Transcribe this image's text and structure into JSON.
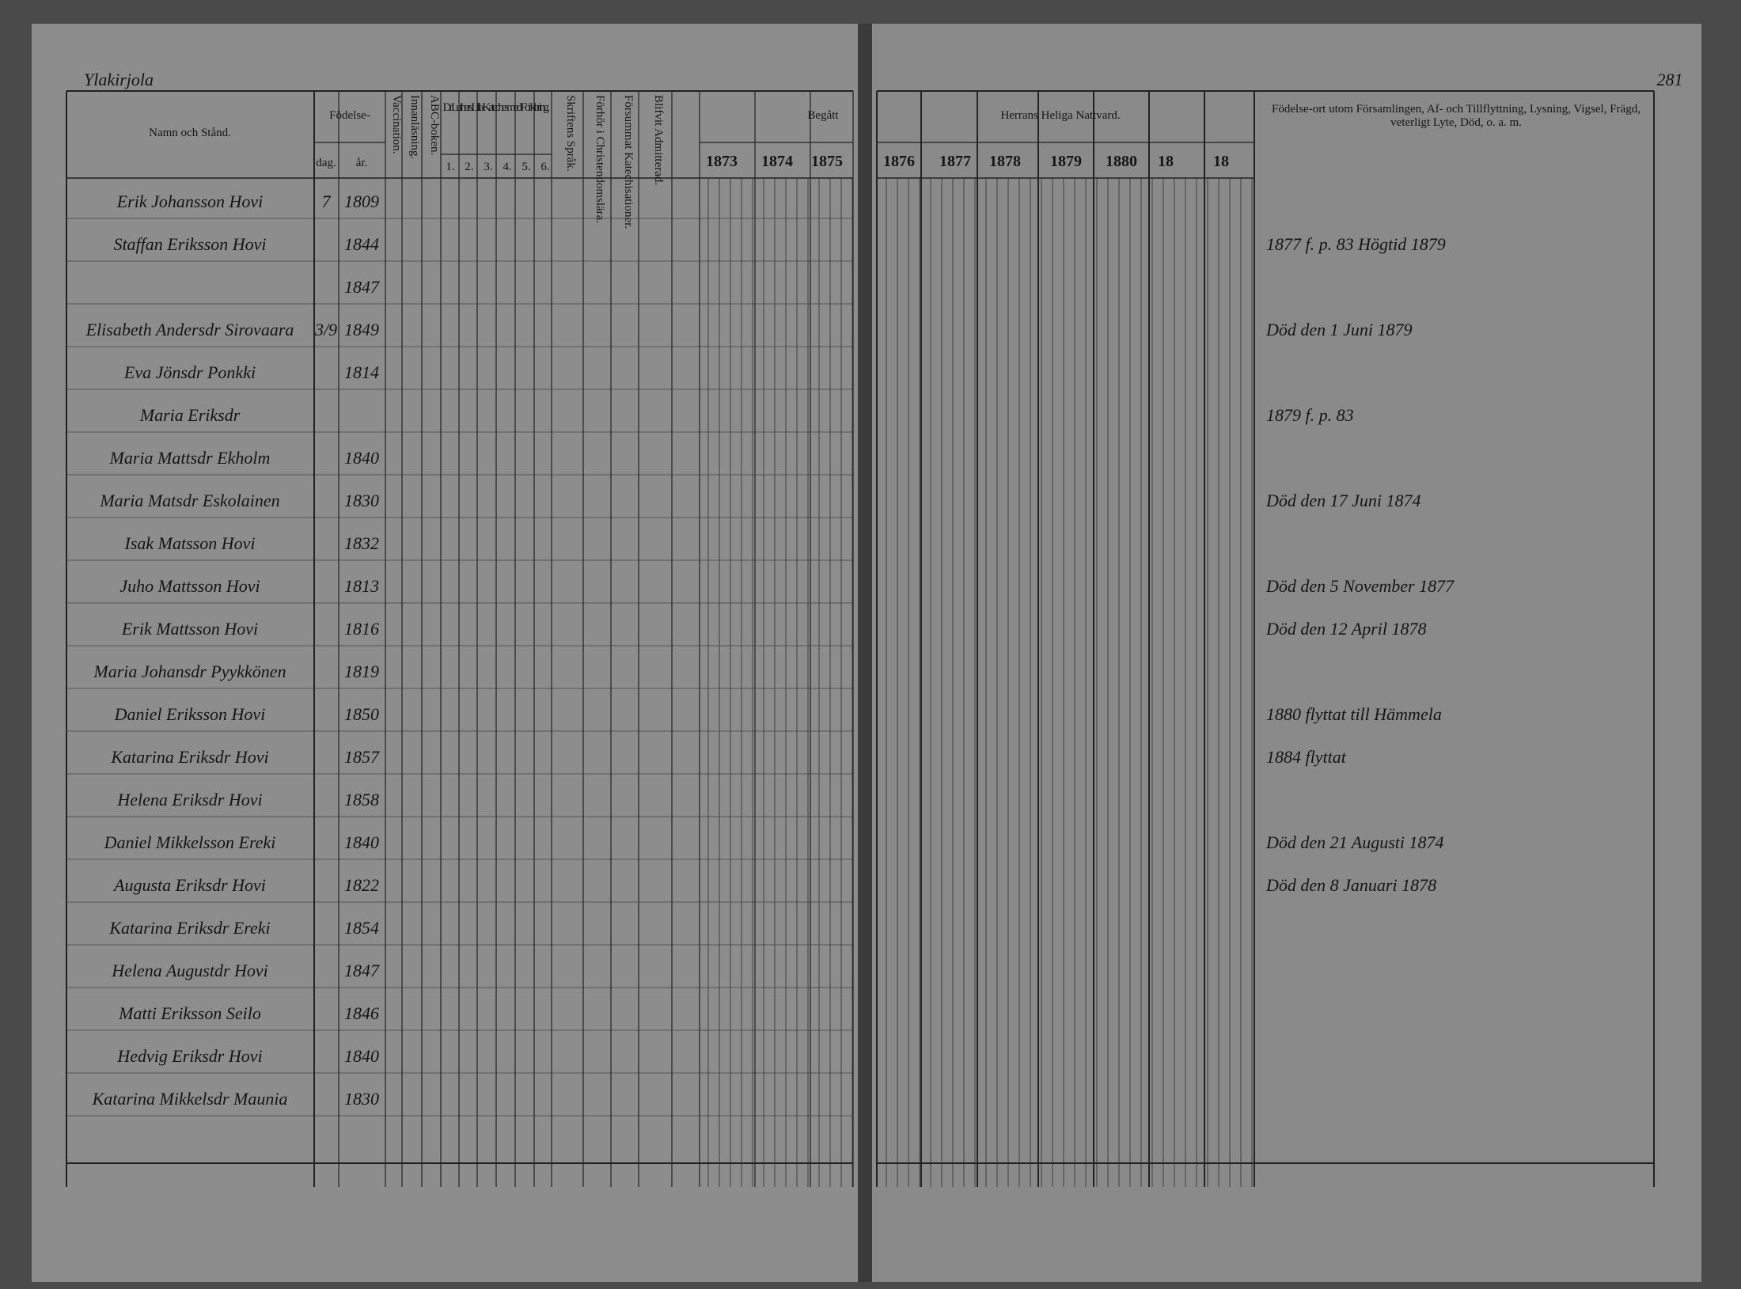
{
  "left_page": {
    "parish": "Ylakirjola",
    "headers": {
      "name": "Namn och Stånd.",
      "birth": "Födelse-",
      "day": "dag.",
      "year": "år.",
      "vaccination": "Vaccination.",
      "reading": "Innanläsning.",
      "abc": "ABC-boken.",
      "catechism": "Dr Luthers Lilla Katechesmed Förklaring.",
      "catechism_parts": [
        "1.",
        "2.",
        "3.",
        "4.",
        "5.",
        "6."
      ],
      "scripture": "Skriftens Språk.",
      "christianity": "Förhör i Christendomslära.",
      "neglected": "Försummat Katechisationer.",
      "admitted": "Blifvit Admitterad."
    }
  },
  "right_page": {
    "page_number": "281",
    "begatt": "Begått",
    "communion": "Herrans Heliga Nattvard.",
    "years": [
      "1873",
      "1874",
      "1875",
      "1876",
      "1877",
      "1878",
      "1879",
      "1880",
      "18",
      "18"
    ],
    "remarks_header": "Födelse-ort utom Församlingen, Af- och Tillflyttning, Lysning, Vigsel, Frägd, veterligt Lyte, Död, o. a. m."
  },
  "rows": [
    {
      "name": "Erik Johansson Hovi",
      "day": "7",
      "year": "1809"
    },
    {
      "name": "Staffan Eriksson Hovi",
      "year": "1844",
      "remark": "1877 f. p. 83 Högtid 1879"
    },
    {
      "year": "1847"
    },
    {
      "name": "Elisabeth Andersdr Sirovaara",
      "day": "3/9",
      "year": "1849",
      "remark": "Död den 1 Juni 1879"
    },
    {
      "name": "Eva Jönsdr Ponkki",
      "year": "1814"
    },
    {
      "name": "Maria Eriksdr",
      "remark": "1879 f. p. 83"
    },
    {
      "name": "Maria Mattsdr Ekholm",
      "year": "1840"
    },
    {
      "name": "Maria Matsdr Eskolainen",
      "year": "1830",
      "remark": "Död den 17 Juni 1874"
    },
    {
      "name": "Isak Matsson Hovi",
      "year": "1832"
    },
    {
      "name": "Juho Mattsson Hovi",
      "year": "1813",
      "remark": "Död den 5 November 1877"
    },
    {
      "name": "Erik Mattsson Hovi",
      "year": "1816",
      "remark": "Död den 12 April 1878"
    },
    {
      "name": "Maria Johansdr Pyykkönen",
      "year": "1819"
    },
    {
      "name": "Daniel Eriksson Hovi",
      "year": "1850",
      "remark": "1880 flyttat till Hämmela"
    },
    {
      "name": "Katarina Eriksdr Hovi",
      "year": "1857",
      "remark": "1884 flyttat"
    },
    {
      "name": "Helena Eriksdr Hovi",
      "year": "1858"
    },
    {
      "name": "Daniel Mikkelsson Ereki",
      "year": "1840",
      "remark": "Död den 21 Augusti 1874"
    },
    {
      "name": "Augusta Eriksdr Hovi",
      "year": "1822",
      "remark": "Död den 8 Januari 1878"
    },
    {
      "name": "Katarina Eriksdr Ereki",
      "year": "1854"
    },
    {
      "name": "Helena Augustdr Hovi",
      "year": "1847"
    },
    {
      "name": "Matti Eriksson Seilo",
      "year": "1846"
    },
    {
      "name": "Hedvig Eriksdr Hovi",
      "year": "1840"
    },
    {
      "name": "Katarina Mikkelsdr Maunia",
      "year": "1830"
    }
  ]
}
